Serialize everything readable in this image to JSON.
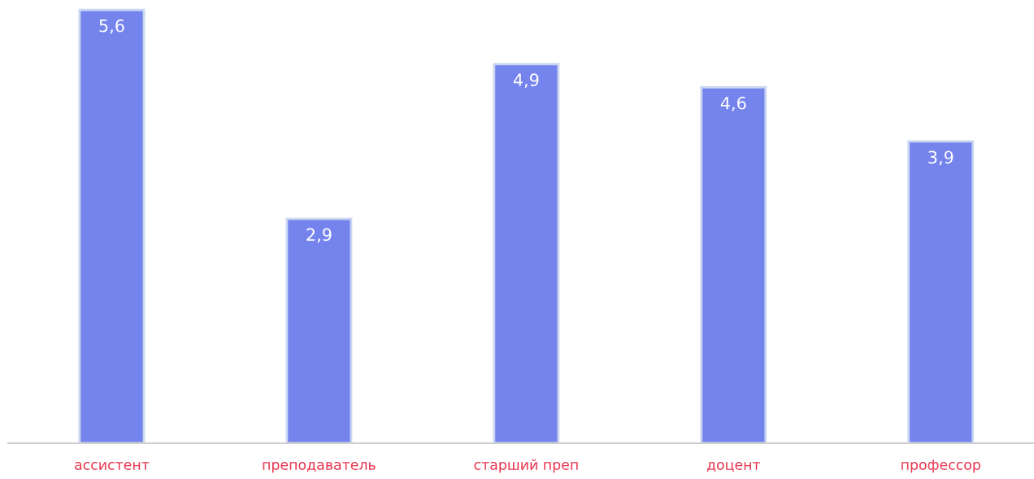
{
  "chart_data": {
    "type": "bar",
    "categories": [
      "ассистент",
      "преподаватель",
      "старший преп",
      "доцент",
      "профессор"
    ],
    "values": [
      5.6,
      2.9,
      4.9,
      4.6,
      3.9
    ],
    "value_labels": [
      "5,6",
      "2,9",
      "4,9",
      "4,6",
      "3,9"
    ],
    "color": "#7583ed",
    "tick_labels": "x",
    "grid": false,
    "legend": false
  }
}
